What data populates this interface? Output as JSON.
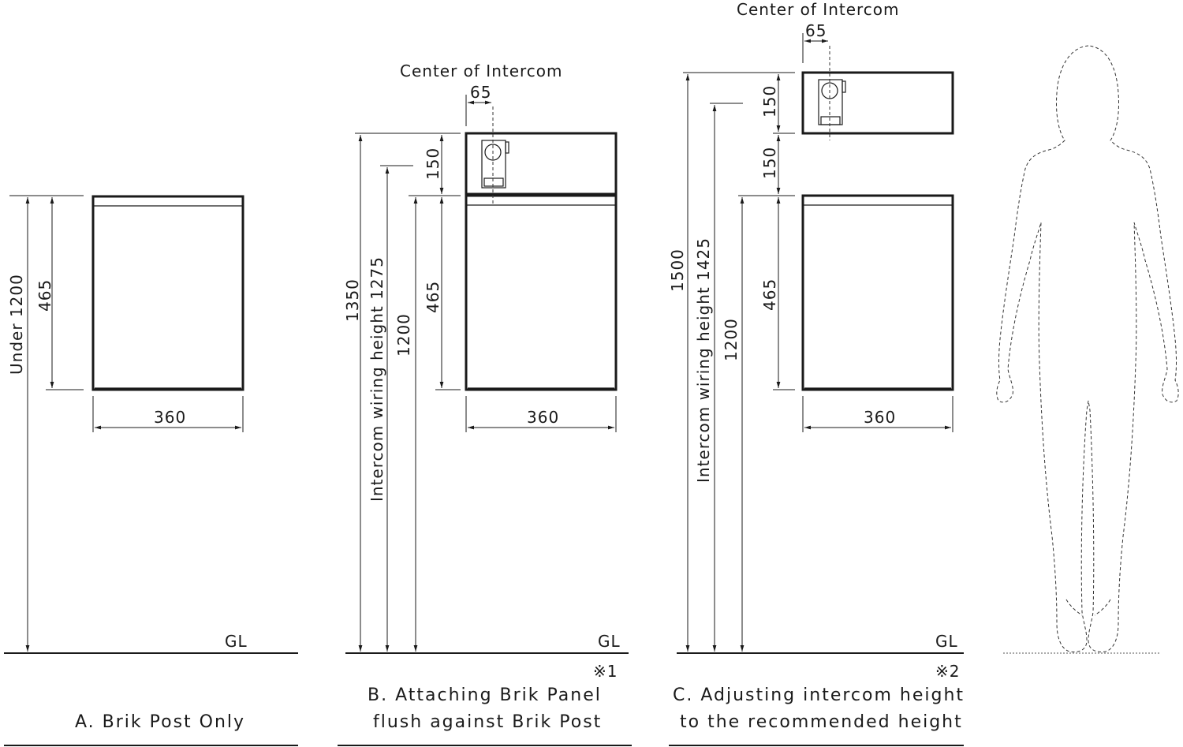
{
  "panel_a": {
    "height_label": "Under 1200",
    "post_height": "465",
    "width": "360",
    "ground": "GL",
    "caption": "A. Brik Post Only"
  },
  "panel_b": {
    "intercom_label": "Center of Intercom",
    "intercom_offset": "65",
    "panel_height": "150",
    "total_height": "1350",
    "wiring_height": "Intercom wiring height 1275",
    "post_top_height": "1200",
    "post_height": "465",
    "width": "360",
    "ground": "GL",
    "note": "※1",
    "caption_line1": "B. Attaching Brik Panel",
    "caption_line2": "flush against Brik Post"
  },
  "panel_c": {
    "intercom_label": "Center of Intercom",
    "intercom_offset": "65",
    "panel_height": "150",
    "gap_height": "150",
    "total_height": "1500",
    "wiring_height": "Intercom wiring height 1425",
    "post_top_height": "1200",
    "post_height": "465",
    "width": "360",
    "ground": "GL",
    "note": "※2",
    "caption_line1": "C. Adjusting intercom height",
    "caption_line2": "to the recommended height"
  }
}
